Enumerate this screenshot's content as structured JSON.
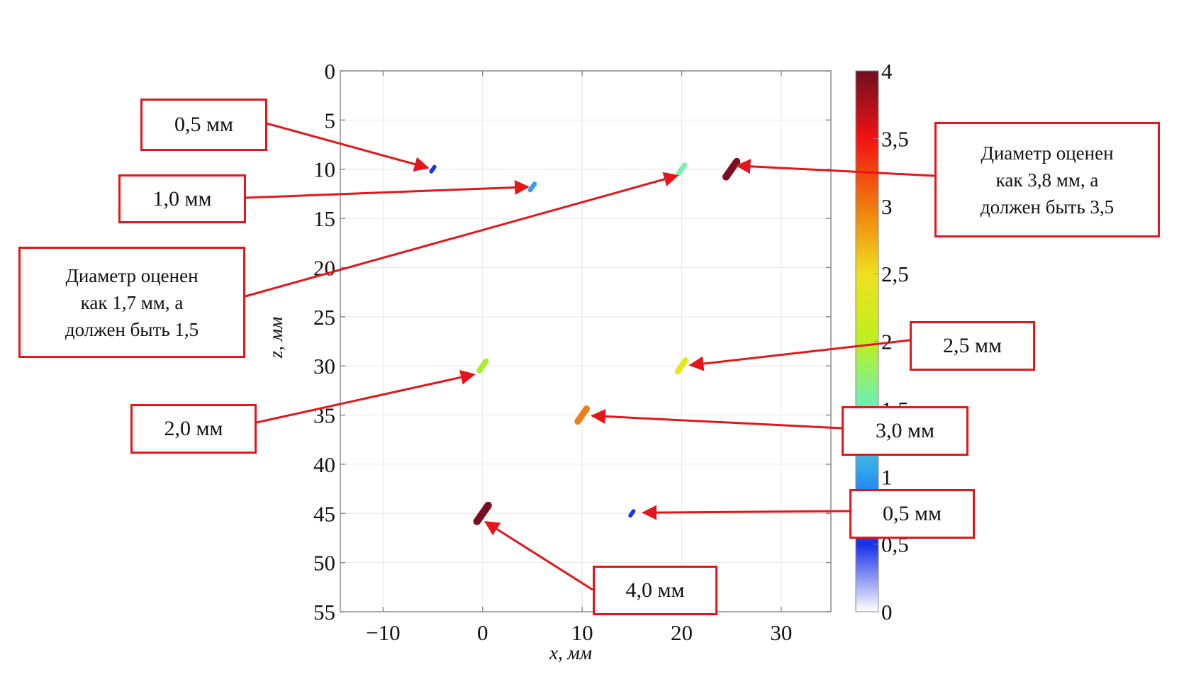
{
  "chart_data": {
    "type": "scatter",
    "xlabel": "x, мм",
    "ylabel": "z, мм",
    "xlim": [
      -14.3,
      35
    ],
    "ylim": [
      0,
      55
    ],
    "y_inverted": true,
    "x_ticks": [
      "−10",
      "0",
      "10",
      "20",
      "30"
    ],
    "x_tick_values": [
      -10,
      0,
      10,
      20,
      30
    ],
    "y_ticks": [
      "0",
      "5",
      "10",
      "15",
      "20",
      "25",
      "30",
      "35",
      "40",
      "45",
      "50",
      "55"
    ],
    "y_tick_values": [
      0,
      5,
      10,
      15,
      20,
      25,
      30,
      35,
      40,
      45,
      50,
      55
    ],
    "grid": true,
    "colorbar": {
      "min": 0,
      "max": 4,
      "ticks": [
        "0",
        "0,5",
        "1",
        "1,5",
        "2",
        "2,5",
        "3",
        "3,5",
        "4"
      ],
      "tick_values": [
        0,
        0.5,
        1,
        1.5,
        2,
        2.5,
        3,
        3.5,
        4
      ],
      "colormap": [
        "#ffffff",
        "#1730e6",
        "#2d9cf0",
        "#66f0c0",
        "#bdf01e",
        "#f0e020",
        "#f07a0e",
        "#f01212",
        "#701020"
      ]
    },
    "points": [
      {
        "x": -5,
        "z": 10,
        "diameter": 0.5,
        "color": "#1a35e0"
      },
      {
        "x": 5,
        "z": 11.8,
        "diameter": 1.0,
        "color": "#2e9ef2"
      },
      {
        "x": 20,
        "z": 10,
        "diameter": 1.7,
        "color": "#7ef0b0"
      },
      {
        "x": 25,
        "z": 10,
        "diameter": 3.8,
        "color": "#7a0f24"
      },
      {
        "x": 0,
        "z": 30,
        "diameter": 2.0,
        "color": "#a6ee2c"
      },
      {
        "x": 20,
        "z": 30,
        "diameter": 2.5,
        "color": "#e6e81e"
      },
      {
        "x": 10,
        "z": 35,
        "diameter": 3.0,
        "color": "#f47c14"
      },
      {
        "x": 0,
        "z": 45,
        "diameter": 4.0,
        "color": "#7a0f24"
      },
      {
        "x": 15,
        "z": 45,
        "diameter": 0.5,
        "color": "#1a35e0"
      }
    ]
  },
  "annotations": [
    {
      "lines": [
        "0,5 мм"
      ]
    },
    {
      "lines": [
        "1,0 мм"
      ]
    },
    {
      "lines": [
        "Диаметр оценен",
        "как 1,7 мм, а",
        "должен быть 1,5"
      ]
    },
    {
      "lines": [
        "2,0 мм"
      ]
    },
    {
      "lines": [
        "Диаметр оценен",
        "как 3,8 мм, а",
        "должен быть 3,5"
      ]
    },
    {
      "lines": [
        "2,5 мм"
      ]
    },
    {
      "lines": [
        "3,0 мм"
      ]
    },
    {
      "lines": [
        "0,5 мм"
      ]
    },
    {
      "lines": [
        "4,0 мм"
      ]
    }
  ],
  "colors": {
    "annotation": "#e3161b",
    "axis": "#8c8c8c",
    "grid": "#e6e6e6"
  }
}
